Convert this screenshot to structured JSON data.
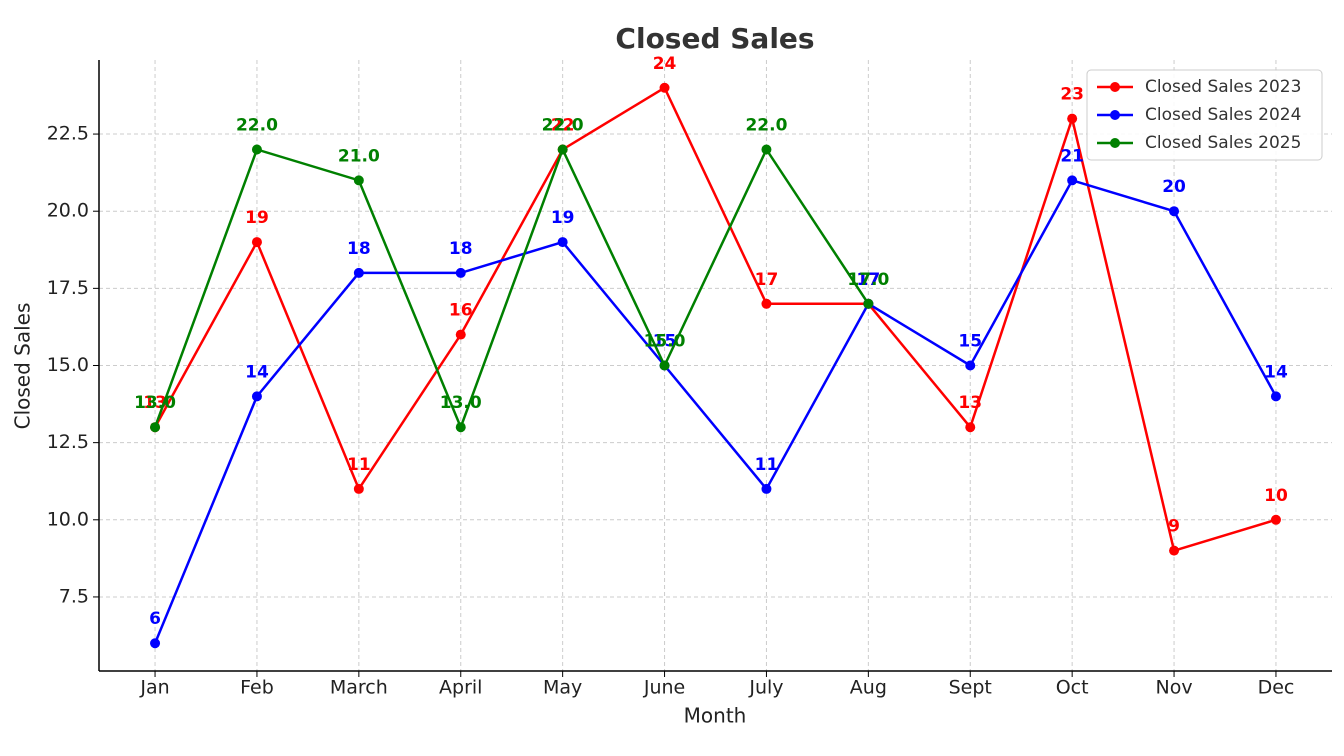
{
  "chart_data": {
    "type": "line",
    "title": "Closed Sales",
    "x_label": "Month",
    "y_label": "Closed Sales",
    "categories": [
      "Jan",
      "Feb",
      "March",
      "April",
      "May",
      "June",
      "July",
      "Aug",
      "Sept",
      "Oct",
      "Nov",
      "Dec"
    ],
    "series": [
      {
        "name": "Closed Sales 2023",
        "color": "#ff0000",
        "values": [
          13,
          19,
          11,
          16,
          22,
          24,
          17,
          17,
          13,
          23,
          9,
          10
        ]
      },
      {
        "name": "Closed Sales 2024",
        "color": "#0000ff",
        "values": [
          6,
          14,
          18,
          18,
          19,
          15,
          11,
          17,
          15,
          21,
          20,
          14
        ]
      },
      {
        "name": "Closed Sales 2025",
        "color": "#008000",
        "values": [
          13,
          22,
          21,
          13,
          22,
          15,
          22,
          17,
          null,
          null,
          null,
          null
        ],
        "value_labels": [
          "13.0",
          "22.0",
          "21.0",
          "13.0",
          "22.0",
          "15.0",
          "22.0",
          "17.0",
          null,
          null,
          null,
          null
        ]
      }
    ],
    "ylim": [
      5.1,
      24.9
    ],
    "yticks": [
      7.5,
      {
        "value": 10,
        "label": "10.0"
      },
      12.5,
      {
        "value": 15,
        "label": "15.0"
      },
      17.5,
      {
        "value": 20,
        "label": "20.0"
      },
      22.5
    ],
    "grid": true,
    "legend": "upper right"
  }
}
